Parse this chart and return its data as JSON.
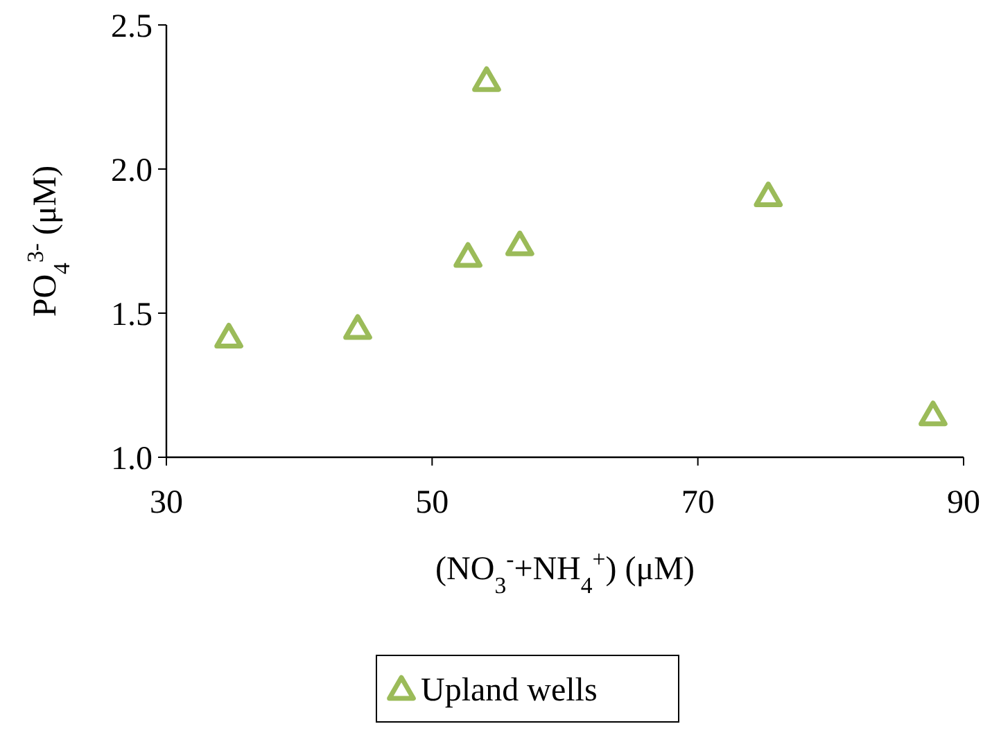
{
  "chart_data": {
    "type": "scatter",
    "xlabel": "(NO$_{3}$$^{-}$+NH$_{4}$$^{+}$) (μM)",
    "ylabel": "PO$_{4}$$^{3-}$ (μM)",
    "x": [
      34.7,
      44.4,
      52.7,
      54.1,
      56.6,
      75.3,
      87.7
    ],
    "series": [
      {
        "name": "Upland wells",
        "color": "#9bbb59",
        "values": [
          1.41,
          1.44,
          1.69,
          2.3,
          1.73,
          1.9,
          1.14
        ]
      }
    ],
    "xlim": [
      30,
      90
    ],
    "xticks": [
      30,
      50,
      70,
      90
    ],
    "ylim": [
      1.0,
      2.5
    ],
    "yticks": [
      {
        "value": 1.0,
        "label": "1.0"
      },
      {
        "value": 1.5,
        "label": "1.5"
      },
      {
        "value": 2.0,
        "label": "2.0"
      },
      {
        "value": 2.5,
        "label": "2.5"
      }
    ],
    "grid": false,
    "legend": "bottom",
    "marker": "triangle"
  }
}
